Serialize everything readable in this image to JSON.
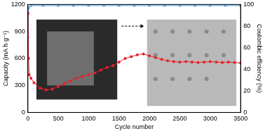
{
  "chart_data": {
    "type": "scatter",
    "x_label": "Cycle number",
    "y_label": "Capacity (mA h g⁻¹)",
    "y2_label": "Coulombic efficiency (%)",
    "xlim": [
      0,
      3500
    ],
    "xticks": [
      0,
      500,
      1000,
      1500,
      2000,
      2500,
      3000,
      3500
    ],
    "ylim": [
      0,
      1200
    ],
    "yticks": [
      0,
      300,
      600,
      900,
      1200
    ],
    "y2lim": [
      0,
      100
    ],
    "y2ticks": [
      0,
      20,
      40,
      60,
      80,
      100
    ],
    "grid": false,
    "series": [
      {
        "name": "Capacity",
        "color": "#e8202a",
        "marker": "circle",
        "line_style": "solid",
        "x": [
          1,
          10,
          20,
          50,
          100,
          200,
          300,
          400,
          500,
          600,
          700,
          800,
          900,
          1000,
          1100,
          1200,
          1300,
          1400,
          1500,
          1600,
          1700,
          1800,
          1900,
          2000,
          2100,
          2200,
          2300,
          2400,
          2500,
          2600,
          2700,
          2800,
          2900,
          3000,
          3100,
          3200,
          3300,
          3400,
          3500
        ],
        "values": [
          1100,
          600,
          420,
          380,
          330,
          270,
          250,
          260,
          290,
          320,
          350,
          380,
          400,
          420,
          440,
          470,
          500,
          520,
          560,
          600,
          620,
          640,
          650,
          630,
          610,
          590,
          575,
          565,
          560,
          565,
          560,
          555,
          560,
          565,
          560,
          555,
          560,
          555,
          550
        ]
      },
      {
        "name": "Coulombic efficiency",
        "color": "#3d8fd9",
        "marker": "triangle",
        "line_style": "solid",
        "axis": "y2",
        "x": [
          1,
          10,
          50,
          250,
          500,
          750,
          1000,
          1250,
          1500,
          1750,
          2000,
          2250,
          2500,
          2750,
          3000,
          3250,
          3500
        ],
        "values": [
          70,
          97,
          99,
          99,
          99,
          99,
          99,
          99,
          99,
          99,
          99,
          99,
          99,
          99,
          99,
          99,
          99
        ]
      }
    ]
  }
}
